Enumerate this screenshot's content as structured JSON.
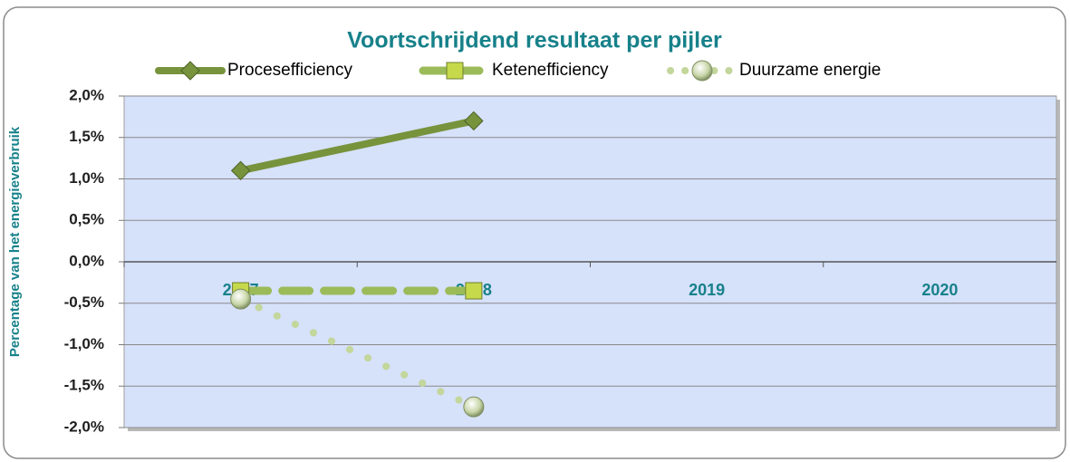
{
  "chart_data": {
    "type": "line",
    "title": "Voortschrijdend resultaat per pijler",
    "y_label": "Percentage van het energieverbruik",
    "categories": [
      "2017",
      "2018",
      "2019",
      "2020"
    ],
    "series": [
      {
        "name": "Procesefficiency",
        "color": "#77933c",
        "values": [
          1.1,
          1.7,
          null,
          null
        ]
      },
      {
        "name": "Ketenefficiency",
        "color": "#9bbb59",
        "values": [
          -0.35,
          -0.35,
          null,
          null
        ]
      },
      {
        "name": "Duurzame energie",
        "color": "#c3d69b",
        "values": [
          -0.45,
          -1.75,
          null,
          null
        ]
      }
    ],
    "ylim": [
      -2,
      2
    ],
    "yticks": [
      {
        "value": -2,
        "label": "-2,0%"
      },
      {
        "value": -1.5,
        "label": "-1,5%"
      },
      {
        "value": -1,
        "label": "-1,0%"
      },
      {
        "value": -0.5,
        "label": "-0,5%"
      },
      {
        "value": 0,
        "label": "0,0%"
      },
      {
        "value": 0.5,
        "label": "0,5%"
      },
      {
        "value": 1,
        "label": "1,0%"
      },
      {
        "value": 1.5,
        "label": "1,5%"
      },
      {
        "value": 2,
        "label": "2,0%"
      }
    ],
    "grid": true,
    "legend": "top"
  }
}
